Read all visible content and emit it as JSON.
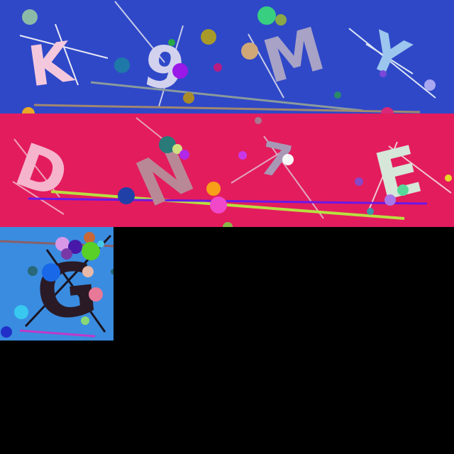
{
  "background": "#000000",
  "tiles": [
    {
      "name": "tile-blue-band",
      "background": "#2f48c8",
      "glyphs": [
        {
          "text": "K",
          "color": "#f4c8dc"
        },
        {
          "text": "9",
          "color": "#d2d2ee"
        },
        {
          "text": "M",
          "color": "#a7a2c6"
        },
        {
          "text": "Y",
          "color": "#9cc6ee"
        }
      ]
    },
    {
      "name": "tile-crimson-band",
      "background": "#e31c5e",
      "glyphs": [
        {
          "text": "D",
          "color": "#f5b4cc"
        },
        {
          "text": "N",
          "color": "#b98896"
        },
        {
          "text": "7",
          "color": "#a898b6"
        },
        {
          "text": "E",
          "color": "#d6e6d8"
        }
      ]
    },
    {
      "name": "tile-light-blue-square",
      "background": "#3a8ce0",
      "glyphs": [
        {
          "text": "G",
          "color": "#2a1a26"
        }
      ]
    }
  ]
}
